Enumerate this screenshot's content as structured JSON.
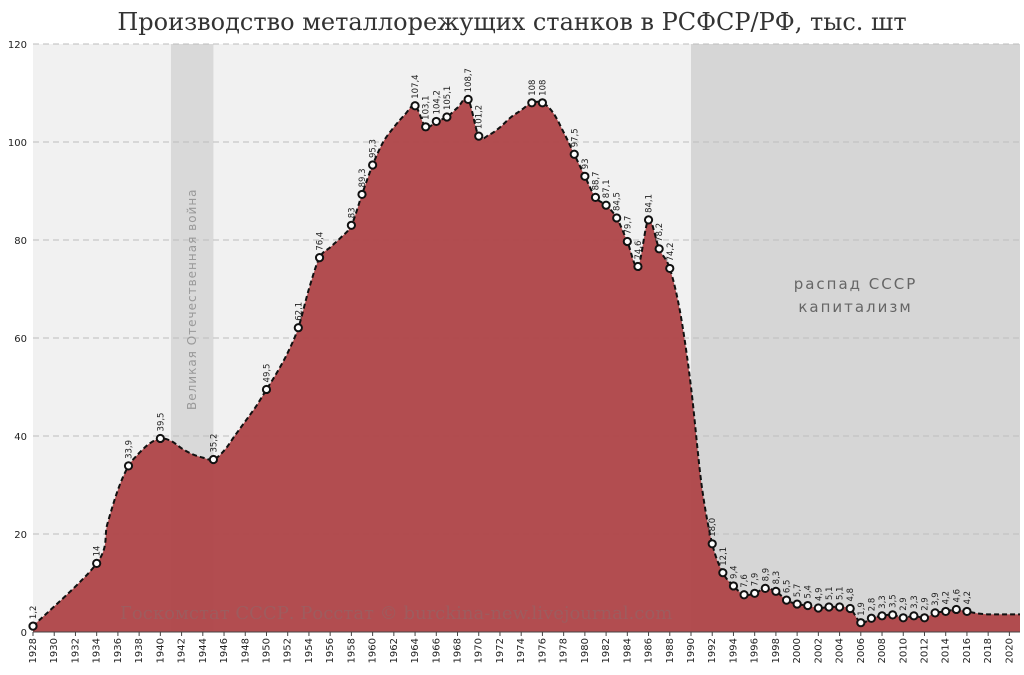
{
  "chart_data": {
    "type": "area",
    "title": "Производство металлорежущих станков в РСФСР/РФ, тыс. шт",
    "source": "Госкомстат СССР. Росстат © burckina-new.livejournal.com",
    "xlabel": "",
    "ylabel": "",
    "ylim": [
      0,
      120
    ],
    "yticks": [
      0,
      20,
      40,
      60,
      80,
      100,
      120
    ],
    "xlim": [
      1928,
      2021
    ],
    "xticks": [
      1928,
      1930,
      1932,
      1934,
      1936,
      1938,
      1940,
      1942,
      1944,
      1946,
      1948,
      1950,
      1952,
      1954,
      1956,
      1958,
      1960,
      1962,
      1964,
      1966,
      1968,
      1970,
      1972,
      1974,
      1976,
      1978,
      1980,
      1982,
      1984,
      1986,
      1988,
      1990,
      1992,
      1994,
      1996,
      1998,
      2000,
      2002,
      2004,
      2006,
      2008,
      2010,
      2012,
      2014,
      2016,
      2018,
      2020
    ],
    "grid": true,
    "fill_color": "#b0474a",
    "line_color": "#111111",
    "regions": [
      {
        "label": "Великая Отечественная война",
        "from": 1941,
        "to": 1945,
        "color": "#d9d9d9"
      },
      {
        "label_lines": [
          "распад СССР",
          "капитализм"
        ],
        "from": 1990,
        "to": 2021,
        "color": "#d6d6d6"
      }
    ],
    "curve": [
      [
        1928,
        1.2
      ],
      [
        1934,
        14
      ],
      [
        1935,
        22
      ],
      [
        1936,
        29
      ],
      [
        1937,
        33.9
      ],
      [
        1938,
        36.5
      ],
      [
        1939,
        38.5
      ],
      [
        1940,
        39.5
      ],
      [
        1941,
        39
      ],
      [
        1942,
        37.5
      ],
      [
        1943,
        36.3
      ],
      [
        1944,
        35.6
      ],
      [
        1945,
        35.2
      ],
      [
        1946,
        37
      ],
      [
        1947,
        40
      ],
      [
        1948,
        43
      ],
      [
        1949,
        46
      ],
      [
        1950,
        49.5
      ],
      [
        1951,
        53
      ],
      [
        1952,
        57
      ],
      [
        1953,
        62.1
      ],
      [
        1954,
        70
      ],
      [
        1955,
        76.4
      ],
      [
        1956,
        78.5
      ],
      [
        1957,
        80.5
      ],
      [
        1958,
        83
      ],
      [
        1959,
        89.3
      ],
      [
        1960,
        95.3
      ],
      [
        1961,
        100
      ],
      [
        1962,
        103
      ],
      [
        1963,
        105.5
      ],
      [
        1964,
        107.4
      ],
      [
        1965,
        103.1
      ],
      [
        1966,
        104.2
      ],
      [
        1967,
        105.1
      ],
      [
        1968,
        107
      ],
      [
        1969,
        108.7
      ],
      [
        1970,
        101.2
      ],
      [
        1971,
        101.5
      ],
      [
        1972,
        103
      ],
      [
        1973,
        105
      ],
      [
        1974,
        106.5
      ],
      [
        1975,
        108
      ],
      [
        1976,
        108
      ],
      [
        1977,
        106
      ],
      [
        1978,
        102
      ],
      [
        1979,
        97.5
      ],
      [
        1980,
        93
      ],
      [
        1981,
        88.7
      ],
      [
        1982,
        87.1
      ],
      [
        1983,
        84.5
      ],
      [
        1984,
        79.7
      ],
      [
        1985,
        74.6
      ],
      [
        1986,
        84.1
      ],
      [
        1987,
        78.2
      ],
      [
        1988,
        74.2
      ],
      [
        1989,
        65
      ],
      [
        1990,
        50
      ],
      [
        1991,
        30
      ],
      [
        1992,
        18
      ],
      [
        1993,
        12.1
      ],
      [
        1994,
        9.4
      ],
      [
        1995,
        7.6
      ],
      [
        1996,
        7.9
      ],
      [
        1997,
        8.9
      ],
      [
        1998,
        8.3
      ],
      [
        1999,
        6.5
      ],
      [
        2000,
        5.7
      ],
      [
        2001,
        5.4
      ],
      [
        2002,
        4.9
      ],
      [
        2003,
        5.1
      ],
      [
        2004,
        5.1
      ],
      [
        2005,
        4.8
      ],
      [
        2006,
        1.9
      ],
      [
        2007,
        2.8
      ],
      [
        2008,
        3.3
      ],
      [
        2009,
        3.5
      ],
      [
        2010,
        2.9
      ],
      [
        2011,
        3.3
      ],
      [
        2012,
        2.9
      ],
      [
        2013,
        3.9
      ],
      [
        2014,
        4.2
      ],
      [
        2015,
        4.6
      ],
      [
        2016,
        4.2
      ],
      [
        2017,
        3.8
      ],
      [
        2018,
        3.6
      ]
    ],
    "points": [
      {
        "x": 1928,
        "y": 1.2,
        "label": "1,2"
      },
      {
        "x": 1934,
        "y": 14,
        "label": "14"
      },
      {
        "x": 1937,
        "y": 33.9,
        "label": "33,9"
      },
      {
        "x": 1940,
        "y": 39.5,
        "label": "39,5"
      },
      {
        "x": 1945,
        "y": 35.2,
        "label": "35,2"
      },
      {
        "x": 1950,
        "y": 49.5,
        "label": "49,5"
      },
      {
        "x": 1953,
        "y": 62.1,
        "label": "62,1"
      },
      {
        "x": 1955,
        "y": 76.4,
        "label": "76,4"
      },
      {
        "x": 1958,
        "y": 83,
        "label": "83"
      },
      {
        "x": 1959,
        "y": 89.3,
        "label": "89,3"
      },
      {
        "x": 1960,
        "y": 95.3,
        "label": "95,3"
      },
      {
        "x": 1964,
        "y": 107.4,
        "label": "107,4"
      },
      {
        "x": 1965,
        "y": 103.1,
        "label": "103,1"
      },
      {
        "x": 1966,
        "y": 104.2,
        "label": "104,2"
      },
      {
        "x": 1967,
        "y": 105.1,
        "label": "105,1"
      },
      {
        "x": 1969,
        "y": 108.7,
        "label": "108,7"
      },
      {
        "x": 1970,
        "y": 101.2,
        "label": "101,2"
      },
      {
        "x": 1975,
        "y": 108,
        "label": "108"
      },
      {
        "x": 1976,
        "y": 108,
        "label": "108"
      },
      {
        "x": 1979,
        "y": 97.5,
        "label": "97,5"
      },
      {
        "x": 1980,
        "y": 93,
        "label": "93"
      },
      {
        "x": 1981,
        "y": 88.7,
        "label": "88,7"
      },
      {
        "x": 1982,
        "y": 87.1,
        "label": "87,1"
      },
      {
        "x": 1983,
        "y": 84.5,
        "label": "84,5"
      },
      {
        "x": 1984,
        "y": 79.7,
        "label": "79,7"
      },
      {
        "x": 1985,
        "y": 74.6,
        "label": "74,6"
      },
      {
        "x": 1986,
        "y": 84.1,
        "label": "84,1"
      },
      {
        "x": 1987,
        "y": 78.2,
        "label": "78,2"
      },
      {
        "x": 1988,
        "y": 74.2,
        "label": "74,2"
      },
      {
        "x": 1992,
        "y": 18,
        "label": "18,0"
      },
      {
        "x": 1993,
        "y": 12.1,
        "label": "12,1"
      },
      {
        "x": 1994,
        "y": 9.4,
        "label": "9,4"
      },
      {
        "x": 1995,
        "y": 7.6,
        "label": "7,6"
      },
      {
        "x": 1996,
        "y": 7.9,
        "label": "7,9"
      },
      {
        "x": 1997,
        "y": 8.9,
        "label": "8,9"
      },
      {
        "x": 1998,
        "y": 8.3,
        "label": "8,3"
      },
      {
        "x": 1999,
        "y": 6.5,
        "label": "6,5"
      },
      {
        "x": 2000,
        "y": 5.7,
        "label": "5,7"
      },
      {
        "x": 2001,
        "y": 5.4,
        "label": "5,4"
      },
      {
        "x": 2002,
        "y": 4.9,
        "label": "4,9"
      },
      {
        "x": 2003,
        "y": 5.1,
        "label": "5,1"
      },
      {
        "x": 2004,
        "y": 5.1,
        "label": "5,1"
      },
      {
        "x": 2005,
        "y": 4.8,
        "label": "4,8"
      },
      {
        "x": 2006,
        "y": 1.9,
        "label": "1,9"
      },
      {
        "x": 2007,
        "y": 2.8,
        "label": "2,8"
      },
      {
        "x": 2008,
        "y": 3.3,
        "label": "3,3"
      },
      {
        "x": 2009,
        "y": 3.5,
        "label": "3,5"
      },
      {
        "x": 2010,
        "y": 2.9,
        "label": "2,9"
      },
      {
        "x": 2011,
        "y": 3.3,
        "label": "3,3"
      },
      {
        "x": 2012,
        "y": 2.9,
        "label": "2,9"
      },
      {
        "x": 2013,
        "y": 3.9,
        "label": "3,9"
      },
      {
        "x": 2014,
        "y": 4.2,
        "label": "4,2"
      },
      {
        "x": 2015,
        "y": 4.6,
        "label": "4,6"
      },
      {
        "x": 2016,
        "y": 4.2,
        "label": "4,2"
      }
    ]
  }
}
